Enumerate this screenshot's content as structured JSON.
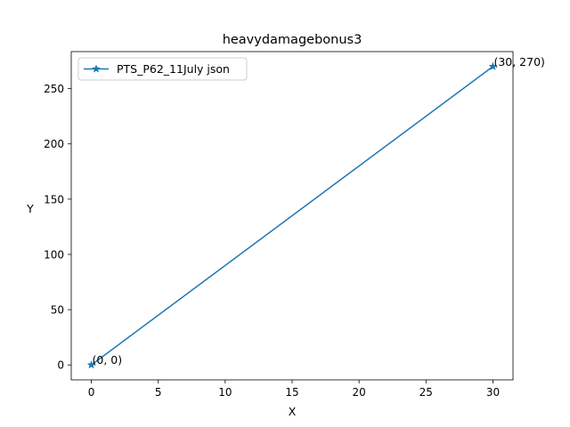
{
  "chart_data": {
    "type": "line",
    "title": "heavydamagebonus3",
    "xlabel": "X",
    "ylabel": "Y",
    "xlim": [
      -1.5,
      31.5
    ],
    "ylim": [
      -13.5,
      283.5
    ],
    "xticks": [
      0,
      5,
      10,
      15,
      20,
      25,
      30
    ],
    "xtick_labels": [
      "0",
      "5",
      "10",
      "15",
      "20",
      "25",
      "30"
    ],
    "yticks": [
      0,
      50,
      100,
      150,
      200,
      250
    ],
    "ytick_labels": [
      "0",
      "50",
      "100",
      "150",
      "200",
      "250"
    ],
    "grid": false,
    "legend": {
      "location": "upper-left"
    },
    "series": [
      {
        "name": "PTS_P62_11July json",
        "color": "#1f77b4",
        "marker": "star",
        "x": [
          0,
          30
        ],
        "y": [
          0,
          270
        ]
      }
    ],
    "annotations": [
      {
        "text": "(0, 0)",
        "x": 0,
        "y": 0
      },
      {
        "text": "(30, 270)",
        "x": 30,
        "y": 270
      }
    ]
  }
}
